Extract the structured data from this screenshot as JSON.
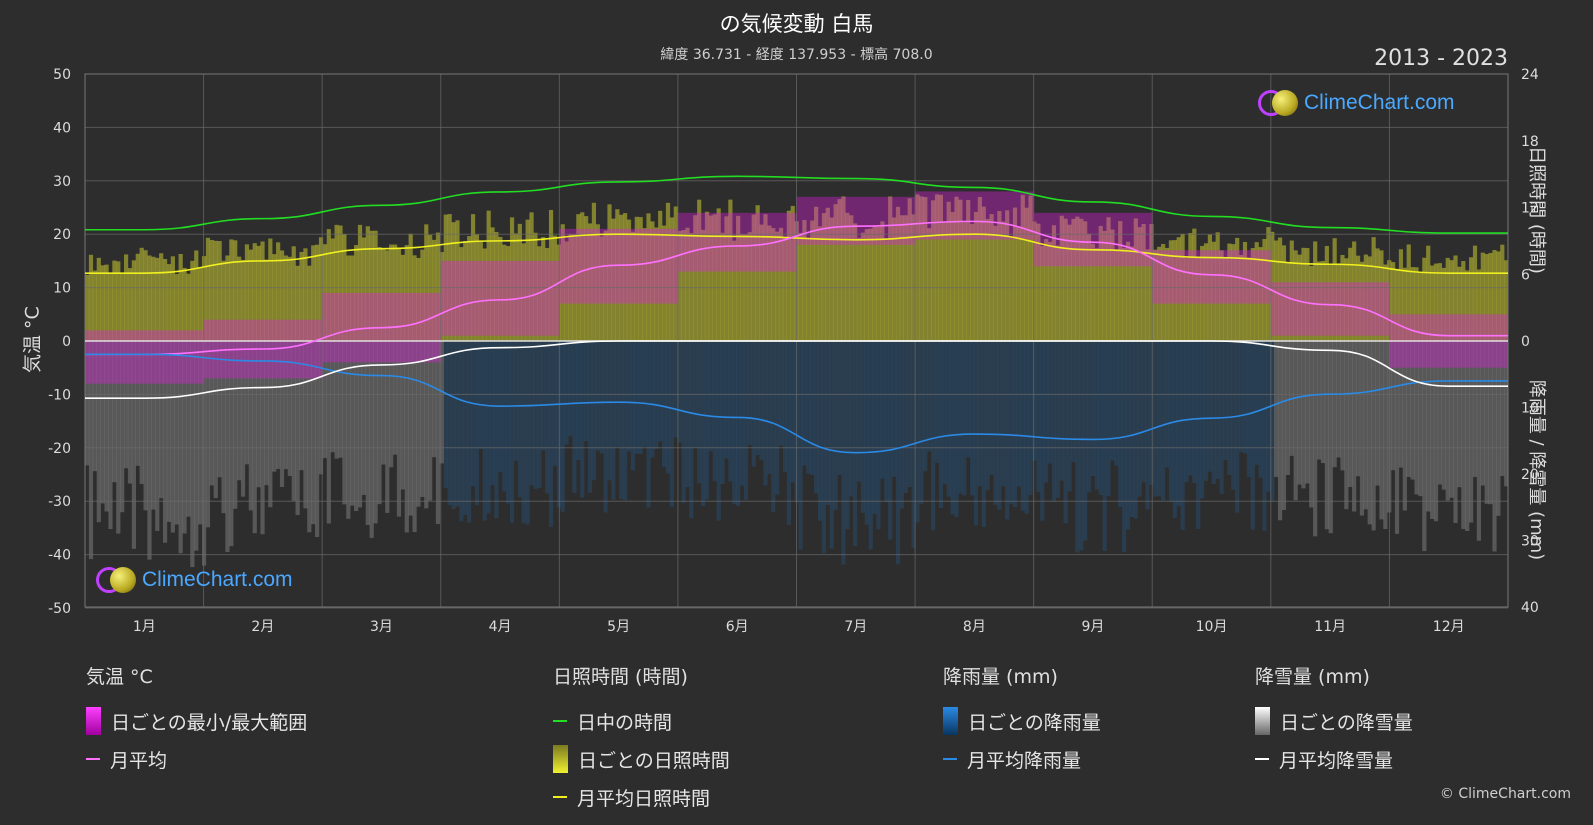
{
  "header": {
    "title": "の気候変動 白馬",
    "subtitle": "緯度 36.731 - 経度 137.953 - 標高 708.0",
    "period": "2013 - 2023"
  },
  "axes": {
    "left_label": "気温 °C",
    "right_top_label": "日照時間 (時間)",
    "right_bottom_label": "降雨量 / 降雪量 (mm)"
  },
  "logo_text": "ClimeChart.com",
  "copyright": "© ClimeChart.com",
  "legend": {
    "temperature": {
      "head": "気温 °C",
      "range": "日ごとの最小/最大範囲",
      "avg": "月平均"
    },
    "sunshine": {
      "head": "日照時間 (時間)",
      "daylight": "日中の時間",
      "daily": "日ごとの日照時間",
      "avg": "月平均日照時間"
    },
    "rain": {
      "head": "降雨量 (mm)",
      "daily": "日ごとの降雨量",
      "avg": "月平均降雨量"
    },
    "snow": {
      "head": "降雪量 (mm)",
      "daily": "日ごとの降雪量",
      "avg": "月平均降雪量"
    }
  },
  "colors": {
    "background": "#2d2d2d",
    "temp_range": "#e020e0",
    "temp_avg": "#ff70ff",
    "daylight": "#22dd22",
    "sunshine": "#c8c832",
    "sunshine_avg": "#f0f020",
    "rain": "#1e78c8",
    "rain_avg": "#2a8ae6",
    "snow": "#c8c8c8",
    "snow_avg": "#ffffff"
  },
  "chart_data": {
    "type": "line",
    "months": [
      "1月",
      "2月",
      "3月",
      "4月",
      "5月",
      "6月",
      "7月",
      "8月",
      "9月",
      "10月",
      "11月",
      "12月"
    ],
    "temp_axis": {
      "min": -50,
      "max": 50,
      "ticks": [
        50,
        40,
        30,
        20,
        10,
        0,
        -10,
        -20,
        -30,
        -40,
        -50
      ]
    },
    "sun_axis": {
      "min": 0,
      "max": 24,
      "ticks": [
        24,
        18,
        12,
        6,
        0
      ]
    },
    "precip_axis": {
      "min": 0,
      "max": 40,
      "ticks": [
        10,
        20,
        30,
        40
      ]
    },
    "series": [
      {
        "name": "日中の時間",
        "unit": "hours",
        "values": [
          10.0,
          11.0,
          12.2,
          13.4,
          14.3,
          14.8,
          14.6,
          13.8,
          12.5,
          11.2,
          10.2,
          9.7
        ]
      },
      {
        "name": "月平均日照時間",
        "unit": "hours",
        "values": [
          6.1,
          7.2,
          8.3,
          9.0,
          9.6,
          9.4,
          9.1,
          9.6,
          8.2,
          7.5,
          6.9,
          6.1
        ]
      },
      {
        "name": "月平均",
        "unit": "°C",
        "values": [
          -2.5,
          -1.5,
          2.5,
          7.7,
          14.2,
          17.8,
          21.5,
          22.4,
          18.5,
          12.4,
          6.8,
          1.0
        ]
      },
      {
        "name": "月平均降雨量",
        "unit": "mm",
        "values": [
          2.0,
          3.0,
          5.2,
          9.8,
          9.2,
          11.5,
          16.8,
          14.0,
          14.8,
          11.6,
          8.0,
          6.0
        ]
      },
      {
        "name": "月平均降雪量",
        "unit": "mm",
        "values": [
          8.6,
          7.0,
          3.6,
          1.0,
          0.0,
          0.0,
          0.0,
          0.0,
          0.0,
          0.0,
          1.4,
          6.8
        ]
      }
    ],
    "daily_temp_range": {
      "min": [
        -8,
        -7,
        -4,
        1,
        7,
        13,
        18,
        19,
        14,
        7,
        1,
        -5
      ],
      "max": [
        2,
        4,
        9,
        15,
        21,
        24,
        27,
        28,
        24,
        17,
        11,
        5
      ]
    },
    "daily_sunshine_envelope": [
      8.5,
      9.5,
      10.5,
      11.8,
      12.6,
      12.8,
      13.0,
      13.2,
      11.5,
      10.5,
      9.5,
      8.8
    ],
    "daily_precip_envelope": [
      34,
      32,
      30,
      28,
      26,
      28,
      34,
      30,
      32,
      30,
      30,
      34
    ]
  }
}
